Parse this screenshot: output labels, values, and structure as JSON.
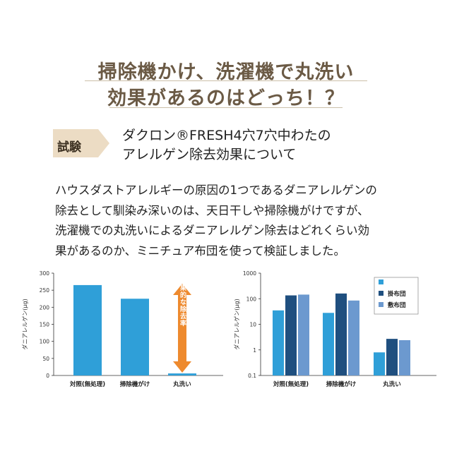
{
  "headline": {
    "line1": "掃除機かけ、洗濯機で丸洗い",
    "line2": "効果があるのはどっち！？"
  },
  "test": {
    "badge": "試験",
    "subject_line1": "ダクロン®FRESH4穴7穴中わたの",
    "subject_line2": "アレルゲン除去効果について"
  },
  "description": {
    "line1": "ハウスダストアレルギーの原因の1つであるダニアレルゲンの",
    "line2": "除去として馴染み深いのは、天日干しや掃除機がけですが、",
    "line3": "洗濯機での丸洗いによるダニアレルゲン除去はどれくらい効",
    "line4": "果があるのか、ミニチュア布団を使って検証しました。"
  },
  "colors": {
    "headline": "#6b5a45",
    "badge": "#ecdcc4",
    "bar_light": "#2f9fd8",
    "bar_dark": "#1f4f7f",
    "bar_mid": "#6c99cf",
    "arrow": "#ee8a2e"
  },
  "chart_data": [
    {
      "type": "bar",
      "ylabel": "ダニアレルゲン(μg)",
      "categories": [
        "対照(無処理)",
        "掃除機がけ",
        "丸洗い"
      ],
      "values": [
        265,
        225,
        6
      ],
      "ylim": [
        0,
        300
      ],
      "yticks": [
        0,
        50,
        100,
        150,
        200,
        250,
        300
      ],
      "annotation": "効果的な除去率"
    },
    {
      "type": "bar",
      "ylabel": "ダニアレルゲン(μg)",
      "scale": "log",
      "categories": [
        "対照(無処理)",
        "掃除機がけ",
        "丸洗い"
      ],
      "ylim": [
        0.1,
        1000
      ],
      "yticks": [
        "0.1",
        "1",
        "10",
        "100",
        "1000"
      ],
      "legend_position": "top-right",
      "series": [
        {
          "values": [
            35,
            28,
            0.8
          ]
        },
        {
          "name": "掛布団",
          "values": [
            135,
            160,
            2.7
          ]
        },
        {
          "name": "敷布団",
          "values": [
            145,
            85,
            2.4
          ]
        }
      ]
    }
  ]
}
